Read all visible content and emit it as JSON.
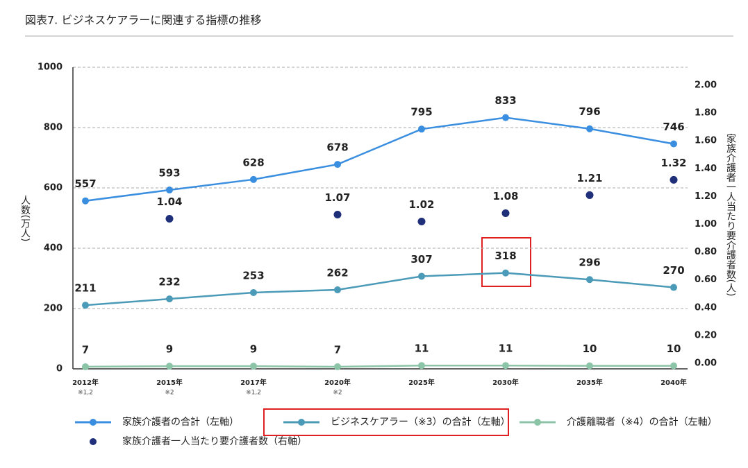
{
  "chart_data": {
    "type": "line",
    "title": "図表7. ビジネスケアラーに関連する指標の推移",
    "y_label": "人数(万人)",
    "y2_label": "家族介護者一人当たり要介護者数(人)",
    "categories": [
      "2012年",
      "2015年",
      "2017年",
      "2020年",
      "2025年",
      "2030年",
      "2035年",
      "2040年"
    ],
    "x_notes": [
      "※1,2",
      "※2",
      "※1,2",
      "※2",
      null,
      null,
      null,
      null
    ],
    "ylim": [
      0,
      1000
    ],
    "yticks": [
      0,
      200,
      400,
      600,
      800,
      1000
    ],
    "y2lim": [
      -0.04,
      2.13
    ],
    "y2ticks": [
      {
        "value": 0,
        "label": "0.00"
      },
      {
        "value": 0.2,
        "label": "0.20"
      },
      {
        "value": 0.4,
        "label": "0.40"
      },
      {
        "value": 0.6,
        "label": "0.60"
      },
      {
        "value": 0.8,
        "label": "0.80"
      },
      {
        "value": 1,
        "label": "1.00"
      },
      {
        "value": 1.2,
        "label": "1.20"
      },
      {
        "value": 1.4,
        "label": "1.40"
      },
      {
        "value": 1.6,
        "label": "1.60"
      },
      {
        "value": 1.8,
        "label": "1.80"
      },
      {
        "value": 2,
        "label": "2.00"
      }
    ],
    "grid": true,
    "series": [
      {
        "name": "家族介護者の合計（左軸）",
        "color": "#3a8ee0",
        "values": [
          557,
          593,
          628,
          678,
          795,
          833,
          796,
          746
        ],
        "line": true
      },
      {
        "name": "ビジネスケアラー（※3）の合計（左軸）",
        "color": "#4a9ab8",
        "values": [
          211,
          232,
          253,
          262,
          307,
          318,
          296,
          270
        ],
        "line": true
      },
      {
        "name": "介護離職者（※4）の合計（左軸）",
        "color": "#8cc4a8",
        "values": [
          7,
          9,
          9,
          7,
          11,
          11,
          10,
          10
        ],
        "line": true
      },
      {
        "name": "家族介護者一人当たり要介護者数（右軸）",
        "color": "#1f2f7a",
        "values": [
          null,
          1.04,
          null,
          1.07,
          1.02,
          1.08,
          1.21,
          1.32
        ],
        "axis": "y2",
        "line": false
      }
    ]
  }
}
